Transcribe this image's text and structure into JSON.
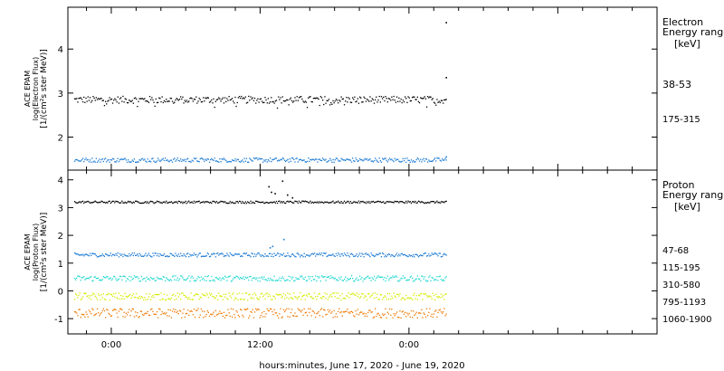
{
  "chart_data": [
    {
      "type": "scatter",
      "ylabel_lines": [
        "ACE EPAM",
        "log(Electron Flux)",
        "[1/(cm²s ster MeV)]"
      ],
      "yticks": [
        2,
        3,
        4
      ],
      "ylim": [
        1.25,
        4.95
      ],
      "legend_title": [
        "Electron",
        "Energy ranges",
        "[keV]"
      ],
      "series": [
        {
          "name": "38-53",
          "color": "#000000",
          "level": 2.85,
          "jitter": 0.08,
          "points": [
            [
              27.0,
              4.6
            ],
            [
              27.0,
              3.35
            ]
          ]
        },
        {
          "name": "175-315",
          "color": "#1a7ad4",
          "level": 1.48,
          "jitter": 0.05,
          "points": [
            [
              27.0,
              1.55
            ]
          ]
        }
      ]
    },
    {
      "type": "scatter",
      "ylabel_lines": [
        "ACE EPAM",
        "log(Proton Flux)",
        "[1/(cm²s ster MeV)]"
      ],
      "yticks": [
        -1,
        0,
        1,
        2,
        3,
        4
      ],
      "ylim": [
        -1.55,
        4.35
      ],
      "legend_title": [
        "Proton",
        "Energy ranges",
        "[keV]"
      ],
      "series": [
        {
          "name": "47-68",
          "color": "#000000",
          "level": 3.2,
          "jitter": 0.04,
          "points": [
            [
              12.7,
              3.75
            ],
            [
              12.9,
              3.55
            ],
            [
              13.2,
              3.5
            ],
            [
              13.8,
              3.95
            ],
            [
              14.2,
              3.45
            ],
            [
              14.6,
              3.35
            ]
          ]
        },
        {
          "name": "115-195",
          "color": "#1a7ad4",
          "level": 1.3,
          "jitter": 0.07,
          "points": [
            [
              12.8,
              1.55
            ],
            [
              13.0,
              1.6
            ],
            [
              13.9,
              1.85
            ]
          ]
        },
        {
          "name": "310-580",
          "color": "#20d8d0",
          "level": 0.45,
          "jitter": 0.1,
          "points": []
        },
        {
          "name": "795-1193",
          "color": "#d6ea00",
          "level": -0.2,
          "jitter": 0.13,
          "points": []
        },
        {
          "name": "1060-1900",
          "color": "#f07800",
          "level": -0.8,
          "jitter": 0.17,
          "points": []
        }
      ]
    }
  ],
  "x_axis": {
    "range_hours": [
      -3.5,
      44.0
    ],
    "data_span_hours": [
      -3.0,
      27.0
    ],
    "major_ticks": [
      0,
      12,
      24,
      36
    ],
    "tick_labels": [
      "0:00",
      "12:00",
      "0:00"
    ],
    "tick_label_hours": [
      0,
      12,
      24
    ],
    "minor_tick_step": 2,
    "label": "hours:minutes, June 17, 2020 - June 19, 2020"
  }
}
